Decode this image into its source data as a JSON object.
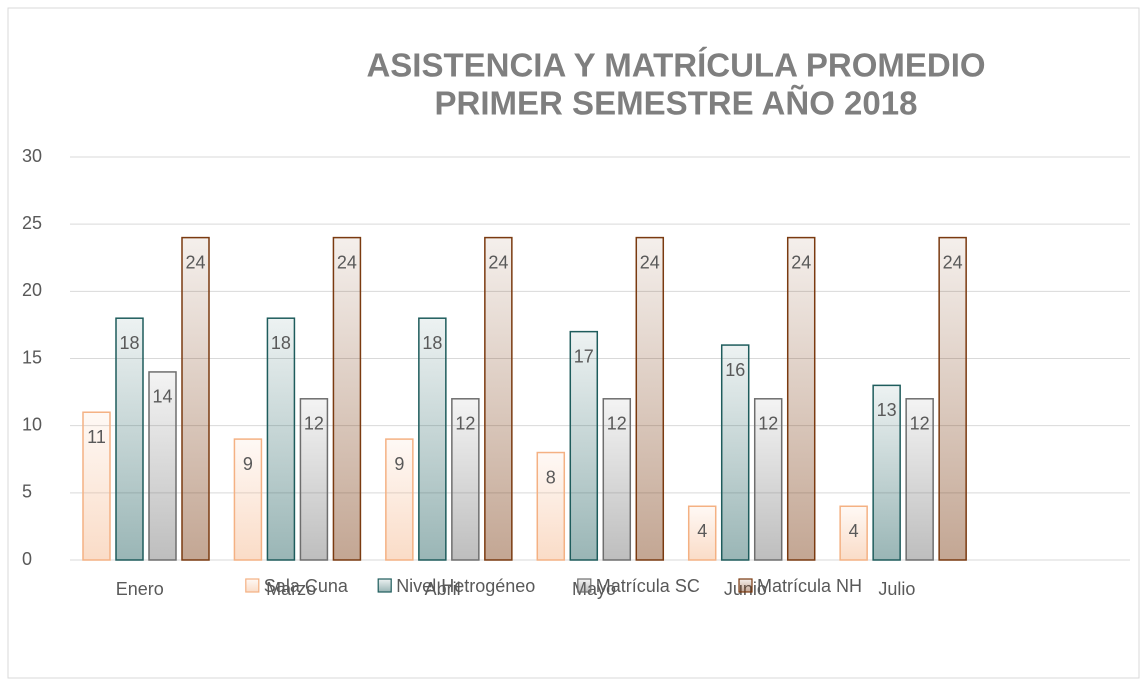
{
  "chart_data": {
    "type": "bar",
    "title": [
      "ASISTENCIA Y MATRÍCULA PROMEDIO",
      "PRIMER SEMESTRE AÑO 2018"
    ],
    "categories": [
      "Enero",
      "Marzo",
      "Abril",
      "Mayo",
      "Junio",
      "Julio",
      null
    ],
    "series": [
      {
        "name": "Sala Cuna",
        "color": "#f4b183",
        "values": [
          11,
          9,
          9,
          8,
          4,
          4,
          null
        ]
      },
      {
        "name": "Nivel Hetrogéneo",
        "color": "#1e5c5c",
        "values": [
          18,
          18,
          18,
          17,
          16,
          13,
          null
        ]
      },
      {
        "name": "Matrícula SC",
        "color": "#6e6e6e",
        "values": [
          14,
          12,
          12,
          12,
          12,
          12,
          null
        ]
      },
      {
        "name": "Matrícula NH",
        "color": "#7a3a10",
        "values": [
          24,
          24,
          24,
          24,
          24,
          24,
          null
        ]
      }
    ],
    "ylim": [
      0,
      30
    ],
    "yticks": [
      0,
      5,
      10,
      15,
      20,
      25,
      30
    ],
    "grid": true,
    "legend": "bottom"
  }
}
